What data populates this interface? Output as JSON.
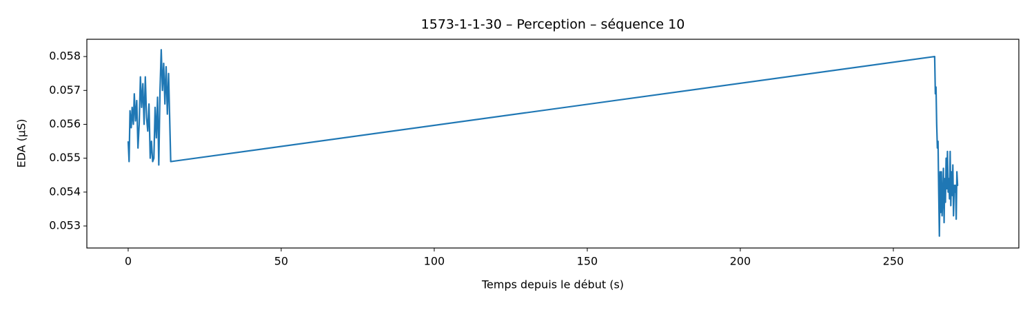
{
  "chart_data": {
    "type": "line",
    "title": "1573-1-1-30 – Perception – séquence 10",
    "xlabel": "Temps depuis le début (s)",
    "ylabel": "EDA (µS)",
    "xlim": [
      -13.5,
      291
    ],
    "ylim": [
      0.05235,
      0.05851
    ],
    "xticks": [
      0,
      50,
      100,
      150,
      200,
      250
    ],
    "yticks": [
      0.053,
      0.054,
      0.055,
      0.056,
      0.057,
      0.058
    ],
    "grid": false,
    "x": [
      0,
      0.3,
      0.6,
      1,
      1.3,
      1.7,
      2,
      2.4,
      2.8,
      3.2,
      3.6,
      4,
      4.4,
      4.8,
      5.2,
      5.6,
      6,
      6.4,
      6.8,
      7.2,
      7.6,
      8,
      8.4,
      8.8,
      9.2,
      9.6,
      10,
      10.4,
      10.8,
      11.2,
      11.6,
      12,
      12.4,
      12.8,
      13.2,
      13.5,
      13.9,
      263.5,
      263.72,
      263.94,
      264.16,
      264.38,
      264.6,
      264.82,
      265.04,
      265.26,
      265.48,
      265.7,
      265.92,
      266.14,
      266.36,
      266.58,
      266.8,
      267.02,
      267.24,
      267.46,
      267.68,
      267.9,
      268.12,
      268.34,
      268.56,
      268.78,
      269.0,
      269.22,
      269.44,
      269.66,
      269.88,
      270.1,
      270.32,
      270.54,
      270.76,
      270.98,
      271.2
    ],
    "series": [
      {
        "name": "EDA",
        "color": "#1f77b4",
        "values": [
          0.0555,
          0.0549,
          0.0564,
          0.0559,
          0.0565,
          0.056,
          0.0569,
          0.0561,
          0.0567,
          0.0553,
          0.056,
          0.0574,
          0.0565,
          0.0572,
          0.056,
          0.0574,
          0.0562,
          0.0558,
          0.0566,
          0.055,
          0.0555,
          0.0549,
          0.055,
          0.0565,
          0.0556,
          0.0568,
          0.0548,
          0.057,
          0.0582,
          0.057,
          0.0578,
          0.0566,
          0.0577,
          0.0563,
          0.0575,
          0.0564,
          0.0549,
          0.058,
          0.0569,
          0.0571,
          0.056,
          0.0553,
          0.0555,
          0.054,
          0.0527,
          0.0546,
          0.0534,
          0.0546,
          0.0533,
          0.0538,
          0.0547,
          0.0531,
          0.0544,
          0.0537,
          0.055,
          0.0541,
          0.0552,
          0.054,
          0.0544,
          0.0538,
          0.0552,
          0.0536,
          0.0546,
          0.0539,
          0.0548,
          0.0533,
          0.0542,
          0.054,
          0.0542,
          0.0532,
          0.0546,
          0.0542,
          0.0542
        ]
      }
    ]
  }
}
